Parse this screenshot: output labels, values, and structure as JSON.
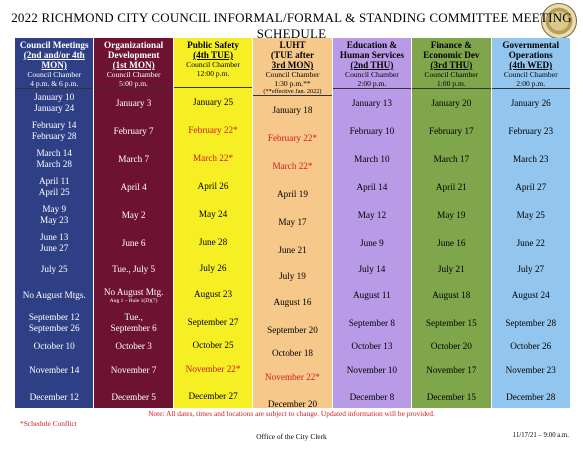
{
  "title": "2022 RICHMOND CITY COUNCIL INFORMAL/FORMAL & STANDING COMMITTEE MEETING SCHEDULE",
  "colors": {
    "council": "#2e3f86",
    "org": "#6d1230",
    "public_safety": "#f5ef23",
    "luht": "#f6c98a",
    "education": "#b99ae6",
    "finance": "#7fa64a",
    "governmental": "#93c6ef",
    "conflict_red": "#d61a1a"
  },
  "columns": [
    {
      "h1": "Council Meetings",
      "h2": "(2nd and/or 4th MON)",
      "h3": "",
      "sub1": "Council Chamber",
      "sub2": "4 p.m. & 6 p.m.",
      "note": ""
    },
    {
      "h1": "Organizational",
      "h2": "Development",
      "h3": "(1st MON)",
      "sub1": "Council Chamber",
      "sub2": "5:00 p.m.",
      "note": ""
    },
    {
      "h1": "Public Safety",
      "h2": "(4th TUE)",
      "h3": "",
      "sub1": "Council Chamber",
      "sub2": "12:00 p.m.",
      "note": ""
    },
    {
      "h1": "LUHT",
      "h2": "(TUE after",
      "h3": "3rd MON)",
      "sub1": "Council Chamber",
      "sub2": "1:30 p.m.**",
      "note": "(**effective Jan. 2022)"
    },
    {
      "h1": "Education &",
      "h2": "Human Services",
      "h3": "(2nd THU)",
      "sub1": "Council Chamber",
      "sub2": "2:00 p.m.",
      "note": ""
    },
    {
      "h1": "Finance &",
      "h2": "Economic Dev",
      "h3": "(3rd THU)",
      "sub1": "Council Chamber",
      "sub2": "1:00 p.m.",
      "note": ""
    },
    {
      "h1": "Governmental",
      "h2": "Operations",
      "h3": "(4th WED)",
      "sub1": "Council Chamber",
      "sub2": "2:00 p.m.",
      "note": ""
    }
  ],
  "rows": [
    [
      {
        "t": "January 10",
        "t2": "January 24"
      },
      {
        "t": "January 3"
      },
      {
        "t": "January 25"
      },
      {
        "t": "January 18"
      },
      {
        "t": "January 13"
      },
      {
        "t": "January 20"
      },
      {
        "t": "January 26"
      }
    ],
    [
      {
        "t": "February 14",
        "t2": "February 28"
      },
      {
        "t": "February 7"
      },
      {
        "t": "February 22*",
        "red": true
      },
      {
        "t": "February 22*",
        "red": true
      },
      {
        "t": "February 10"
      },
      {
        "t": "February 17"
      },
      {
        "t": "February 23"
      }
    ],
    [
      {
        "t": "March 14",
        "t2": "March 28"
      },
      {
        "t": "March 7"
      },
      {
        "t": "March 22*",
        "red": true
      },
      {
        "t": "March 22*",
        "red": true
      },
      {
        "t": "March 10"
      },
      {
        "t": "March 17"
      },
      {
        "t": "March 23"
      }
    ],
    [
      {
        "t": "April 11",
        "t2": "April 25"
      },
      {
        "t": "April 4"
      },
      {
        "t": "April 26"
      },
      {
        "t": "April 19"
      },
      {
        "t": "April 14"
      },
      {
        "t": "April 21"
      },
      {
        "t": "April 27"
      }
    ],
    [
      {
        "t": "May 9",
        "t2": "May 23"
      },
      {
        "t": "May 2"
      },
      {
        "t": "May 24"
      },
      {
        "t": "May 17"
      },
      {
        "t": "May 12"
      },
      {
        "t": "May 19"
      },
      {
        "t": "May 25"
      }
    ],
    [
      {
        "t": "June 13",
        "t2": "June 27"
      },
      {
        "t": "June 6"
      },
      {
        "t": "June 28"
      },
      {
        "t": "June 21"
      },
      {
        "t": "June 9"
      },
      {
        "t": "June 16"
      },
      {
        "t": "June 22"
      }
    ],
    [
      {
        "t": "July 25"
      },
      {
        "t": "Tue., July 5"
      },
      {
        "t": "July 26"
      },
      {
        "t": "July 19"
      },
      {
        "t": "July 14"
      },
      {
        "t": "July 21"
      },
      {
        "t": "July 27"
      }
    ],
    [
      {
        "t": "No August Mtgs."
      },
      {
        "t": "No August Mtg.",
        "sm": "Aug 1 – Rule 1(D)(7)"
      },
      {
        "t": "August 23"
      },
      {
        "t": "August 16"
      },
      {
        "t": "August 11"
      },
      {
        "t": "August 18"
      },
      {
        "t": "August 24"
      }
    ],
    [
      {
        "t": "September 12",
        "t2": "September 26"
      },
      {
        "t": "Tue.,",
        "t2": "September 6"
      },
      {
        "t": "September 27"
      },
      {
        "t": "September 20"
      },
      {
        "t": "September 8"
      },
      {
        "t": "September 15"
      },
      {
        "t": "September 28"
      }
    ],
    [
      {
        "t": "October 10"
      },
      {
        "t": "October 3"
      },
      {
        "t": "October 25"
      },
      {
        "t": "October 18"
      },
      {
        "t": "October 13"
      },
      {
        "t": "October 20"
      },
      {
        "t": "October 26"
      }
    ],
    [
      {
        "t": "November 14"
      },
      {
        "t": "November 7"
      },
      {
        "t": "November 22*",
        "red": true
      },
      {
        "t": "November 22*",
        "red": true
      },
      {
        "t": "November 10"
      },
      {
        "t": "November 17"
      },
      {
        "t": "November 23"
      }
    ],
    [
      {
        "t": "December 12"
      },
      {
        "t": "December 5"
      },
      {
        "t": "December 27"
      },
      {
        "t": "December 20"
      },
      {
        "t": "December 8"
      },
      {
        "t": "December 15"
      },
      {
        "t": "December 28"
      }
    ]
  ],
  "footer": {
    "note": "Note:  All dates, times and locations are subject to change.  Updated information will be provided.",
    "conflict": "*Schedule Conflict",
    "office": "Office of the City Clerk",
    "date": "11/17/21 – 9:00 a.m."
  }
}
